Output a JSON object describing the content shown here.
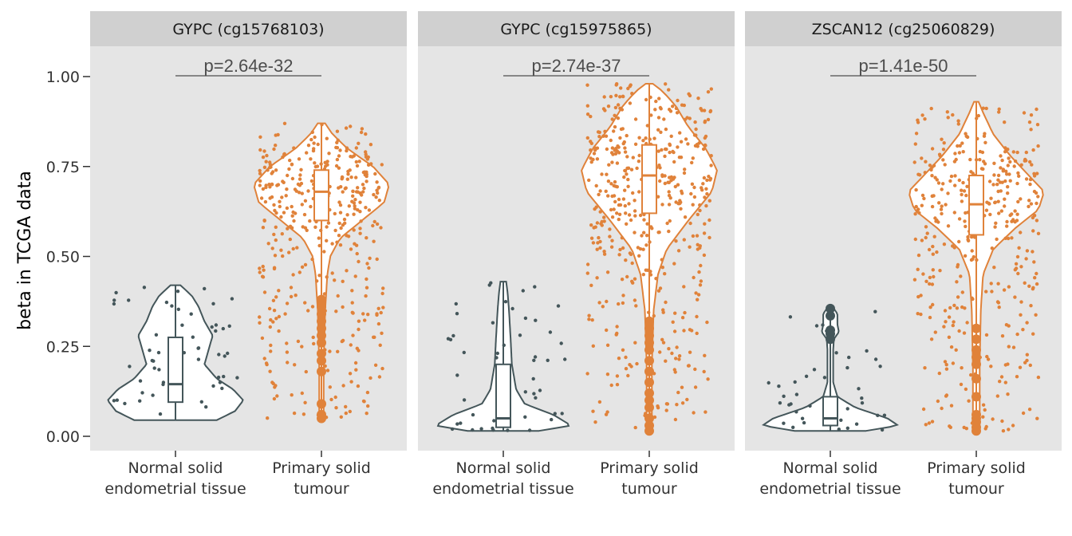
{
  "chart_data": {
    "type": "violin",
    "ylabel": "beta in TCGA data",
    "ylim": [
      0,
      1.05
    ],
    "yticks": [
      0.0,
      0.25,
      0.5,
      0.75,
      1.0
    ],
    "ytick_labels": [
      "0.00",
      "0.25",
      "0.50",
      "0.75",
      "1.00"
    ],
    "grid": false,
    "categories": [
      {
        "line1": "Normal solid",
        "line2": "endometrial tissue"
      },
      {
        "line1": "Primary solid",
        "line2": "tumour"
      }
    ],
    "colors": {
      "normal": "#44565a",
      "tumour": "#e0823a",
      "panel_bg": "#e5e5e5",
      "strip_bg": "#d0d0d0"
    },
    "panels": [
      {
        "title": "GYPC (cg15768103)",
        "pvalue": "p=2.64e-32",
        "groups": [
          {
            "category": 0,
            "min": 0.045,
            "max": 0.42,
            "q1": 0.095,
            "median": 0.145,
            "q3": 0.275,
            "density": [
              [
                0.045,
                0.5
              ],
              [
                0.07,
                0.72
              ],
              [
                0.1,
                0.82
              ],
              [
                0.13,
                0.7
              ],
              [
                0.16,
                0.5
              ],
              [
                0.2,
                0.35
              ],
              [
                0.24,
                0.4
              ],
              [
                0.28,
                0.45
              ],
              [
                0.32,
                0.35
              ],
              [
                0.36,
                0.28
              ],
              [
                0.39,
                0.2
              ],
              [
                0.42,
                0.06
              ]
            ],
            "outliers": [],
            "n_jitter": 55,
            "jitter_min": 0.05,
            "jitter_max": 0.42
          },
          {
            "category": 1,
            "min": 0.05,
            "max": 0.87,
            "q1": 0.6,
            "median": 0.68,
            "q3": 0.74,
            "density": [
              [
                0.05,
                0.03
              ],
              [
                0.2,
                0.03
              ],
              [
                0.35,
                0.05
              ],
              [
                0.45,
                0.08
              ],
              [
                0.5,
                0.12
              ],
              [
                0.55,
                0.25
              ],
              [
                0.6,
                0.55
              ],
              [
                0.65,
                0.85
              ],
              [
                0.7,
                0.92
              ],
              [
                0.75,
                0.7
              ],
              [
                0.8,
                0.35
              ],
              [
                0.84,
                0.15
              ],
              [
                0.87,
                0.05
              ]
            ],
            "outliers": [
              0.05,
              0.06,
              0.09,
              0.18,
              0.21,
              0.23,
              0.26,
              0.28,
              0.3,
              0.32,
              0.34,
              0.36,
              0.37,
              0.38
            ],
            "n_jitter": 420,
            "jitter_min": 0.05,
            "jitter_max": 0.87
          }
        ]
      },
      {
        "title": "GYPC (cg15975865)",
        "pvalue": "p=2.74e-37",
        "groups": [
          {
            "category": 0,
            "min": 0.015,
            "max": 0.43,
            "q1": 0.025,
            "median": 0.05,
            "q3": 0.2,
            "density": [
              [
                0.015,
                0.5
              ],
              [
                0.03,
                0.95
              ],
              [
                0.06,
                0.7
              ],
              [
                0.09,
                0.3
              ],
              [
                0.13,
                0.18
              ],
              [
                0.2,
                0.12
              ],
              [
                0.28,
                0.1
              ],
              [
                0.35,
                0.08
              ],
              [
                0.4,
                0.06
              ],
              [
                0.43,
                0.04
              ]
            ],
            "outliers": [],
            "n_jitter": 50,
            "jitter_min": 0.015,
            "jitter_max": 0.43
          },
          {
            "category": 1,
            "min": 0.015,
            "max": 0.98,
            "q1": 0.62,
            "median": 0.725,
            "q3": 0.81,
            "density": [
              [
                0.015,
                0.03
              ],
              [
                0.2,
                0.03
              ],
              [
                0.35,
                0.05
              ],
              [
                0.45,
                0.1
              ],
              [
                0.52,
                0.2
              ],
              [
                0.6,
                0.45
              ],
              [
                0.68,
                0.72
              ],
              [
                0.74,
                0.78
              ],
              [
                0.8,
                0.65
              ],
              [
                0.86,
                0.45
              ],
              [
                0.92,
                0.3
              ],
              [
                0.96,
                0.15
              ],
              [
                0.98,
                0.04
              ]
            ],
            "outliers": [
              0.015,
              0.03,
              0.05,
              0.08,
              0.1,
              0.12,
              0.15,
              0.18,
              0.21,
              0.24,
              0.26,
              0.28,
              0.3,
              0.32
            ],
            "n_jitter": 480,
            "jitter_min": 0.02,
            "jitter_max": 0.98
          }
        ]
      },
      {
        "title": "ZSCAN12 (cg25060829)",
        "pvalue": "p=1.41e-50",
        "groups": [
          {
            "category": 0,
            "min": 0.015,
            "max": 0.355,
            "q1": 0.03,
            "median": 0.05,
            "q3": 0.11,
            "density": [
              [
                0.015,
                0.5
              ],
              [
                0.03,
                0.95
              ],
              [
                0.05,
                0.8
              ],
              [
                0.08,
                0.35
              ],
              [
                0.11,
                0.1
              ],
              [
                0.15,
                0.04
              ],
              [
                0.2,
                0.04
              ],
              [
                0.24,
                0.04
              ],
              [
                0.27,
                0.05
              ],
              [
                0.29,
                0.12
              ],
              [
                0.31,
                0.1
              ],
              [
                0.34,
                0.1
              ],
              [
                0.355,
                0.05
              ]
            ],
            "outliers": [
              0.27,
              0.285,
              0.295,
              0.335,
              0.355
            ],
            "n_jitter": 40,
            "jitter_min": 0.015,
            "jitter_max": 0.35
          },
          {
            "category": 1,
            "min": 0.015,
            "max": 0.93,
            "q1": 0.56,
            "median": 0.645,
            "q3": 0.725,
            "density": [
              [
                0.015,
                0.03
              ],
              [
                0.2,
                0.03
              ],
              [
                0.35,
                0.04
              ],
              [
                0.45,
                0.06
              ],
              [
                0.52,
                0.15
              ],
              [
                0.58,
                0.35
              ],
              [
                0.63,
                0.55
              ],
              [
                0.68,
                0.6
              ],
              [
                0.73,
                0.45
              ],
              [
                0.78,
                0.3
              ],
              [
                0.84,
                0.15
              ],
              [
                0.9,
                0.06
              ],
              [
                0.93,
                0.02
              ]
            ],
            "outliers": [
              0.015,
              0.025,
              0.04,
              0.05,
              0.06,
              0.11,
              0.16,
              0.2,
              0.22,
              0.24,
              0.27,
              0.3
            ],
            "n_jitter": 400,
            "jitter_min": 0.015,
            "jitter_max": 0.93
          }
        ]
      }
    ]
  }
}
